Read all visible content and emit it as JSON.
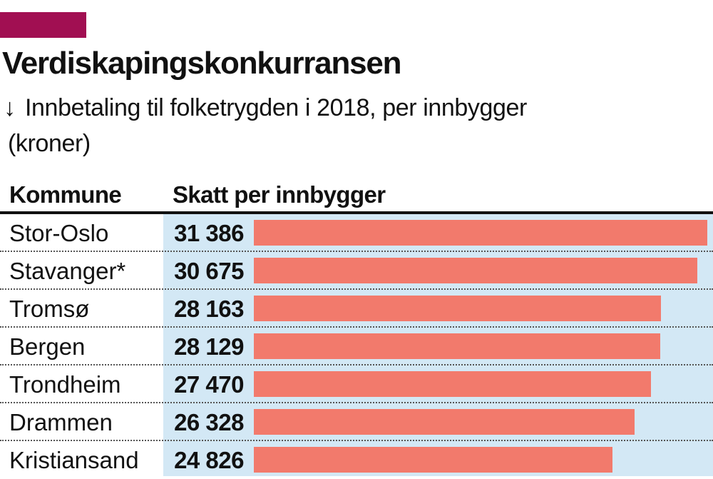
{
  "title": "Verdiskapingskonkurransen",
  "subtitle": {
    "arrow": "↓",
    "line1": "Innbetaling til folketrygden i 2018, per innbygger",
    "line2": "(kroner)"
  },
  "columns": {
    "kommune": "Kommune",
    "skatt": "Skatt per innbygger"
  },
  "colors": {
    "accent": "#a10f52",
    "bar": "#f27a6c",
    "panel": "#d3e8f5"
  },
  "chart_data": {
    "type": "bar",
    "orientation": "horizontal",
    "categories": [
      "Stor-Oslo",
      "Stavanger*",
      "Tromsø",
      "Bergen",
      "Trondheim",
      "Drammen",
      "Kristiansand"
    ],
    "values": [
      31386,
      30675,
      28163,
      28129,
      27470,
      26328,
      24826
    ],
    "value_labels": [
      "31 386",
      "30 675",
      "28 163",
      "28 129",
      "27 470",
      "26 328",
      "24 826"
    ],
    "xlim": [
      0,
      31386
    ],
    "grid": false,
    "legend": "none"
  }
}
